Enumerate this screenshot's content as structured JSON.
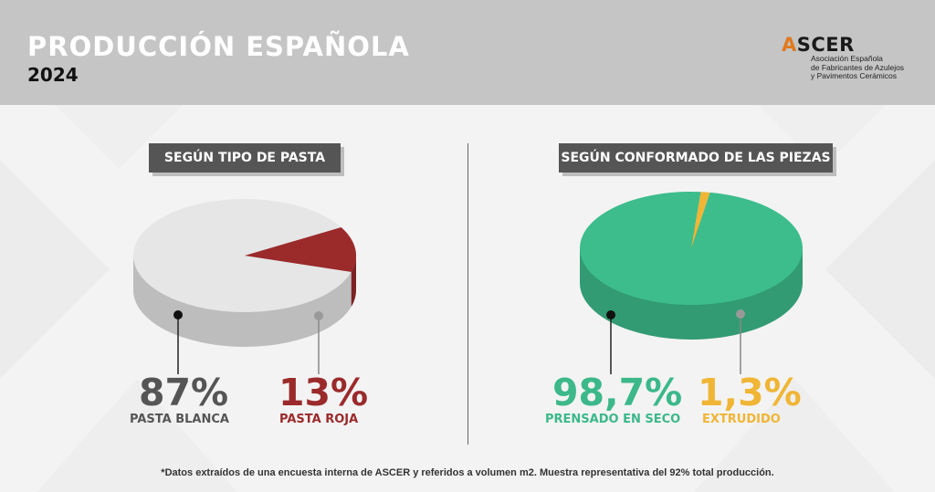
{
  "header": {
    "title": "PRODUCCIÓN ESPAÑOLA",
    "year": "2024",
    "logo": {
      "name_a": "A",
      "name_rest": "SCER",
      "line1": "Asociación Española",
      "line2": "de Fabricantes de Azulejos",
      "line3": "y Pavimentos Cerámicos"
    }
  },
  "chart_data": [
    {
      "type": "pie",
      "title": "SEGÚN TIPO DE PASTA",
      "slices": [
        {
          "label": "PASTA BLANCA",
          "value": 87,
          "display": "87%",
          "color": "#e6e6e6",
          "text_color": "#555555"
        },
        {
          "label": "PASTA ROJA",
          "value": 13,
          "display": "13%",
          "color": "#9b2a2b",
          "text_color": "#9b2a2b"
        }
      ]
    },
    {
      "type": "pie",
      "title": "SEGÚN CONFORMADO DE LAS PIEZAS",
      "slices": [
        {
          "label": "PRENSADO EN SECO",
          "value": 98.7,
          "display": "98,7%",
          "color": "#3dbd8c",
          "text_color": "#3cb88a"
        },
        {
          "label": "EXTRUDIDO",
          "value": 1.3,
          "display": "1,3%",
          "color": "#f0b535",
          "text_color": "#f0b535"
        }
      ]
    }
  ],
  "footnote": "*Datos extraídos de una encuesta interna de ASCER y referidos a volumen m2. Muestra representativa del 92% total producción."
}
